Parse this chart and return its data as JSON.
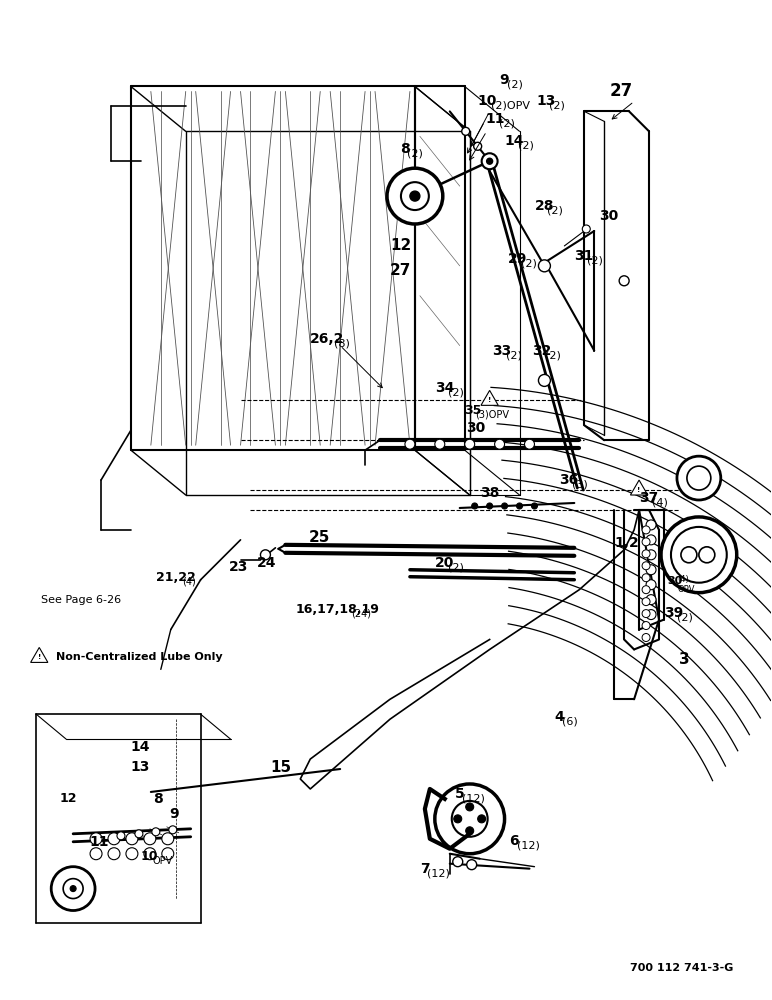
{
  "background_color": "#ffffff",
  "part_number": "700 112 741-3-G",
  "warning_text": "Non-Centralized Lube Only",
  "see_page": "See Page 6-26",
  "fig_width": 7.72,
  "fig_height": 10.0,
  "dpi": 100
}
